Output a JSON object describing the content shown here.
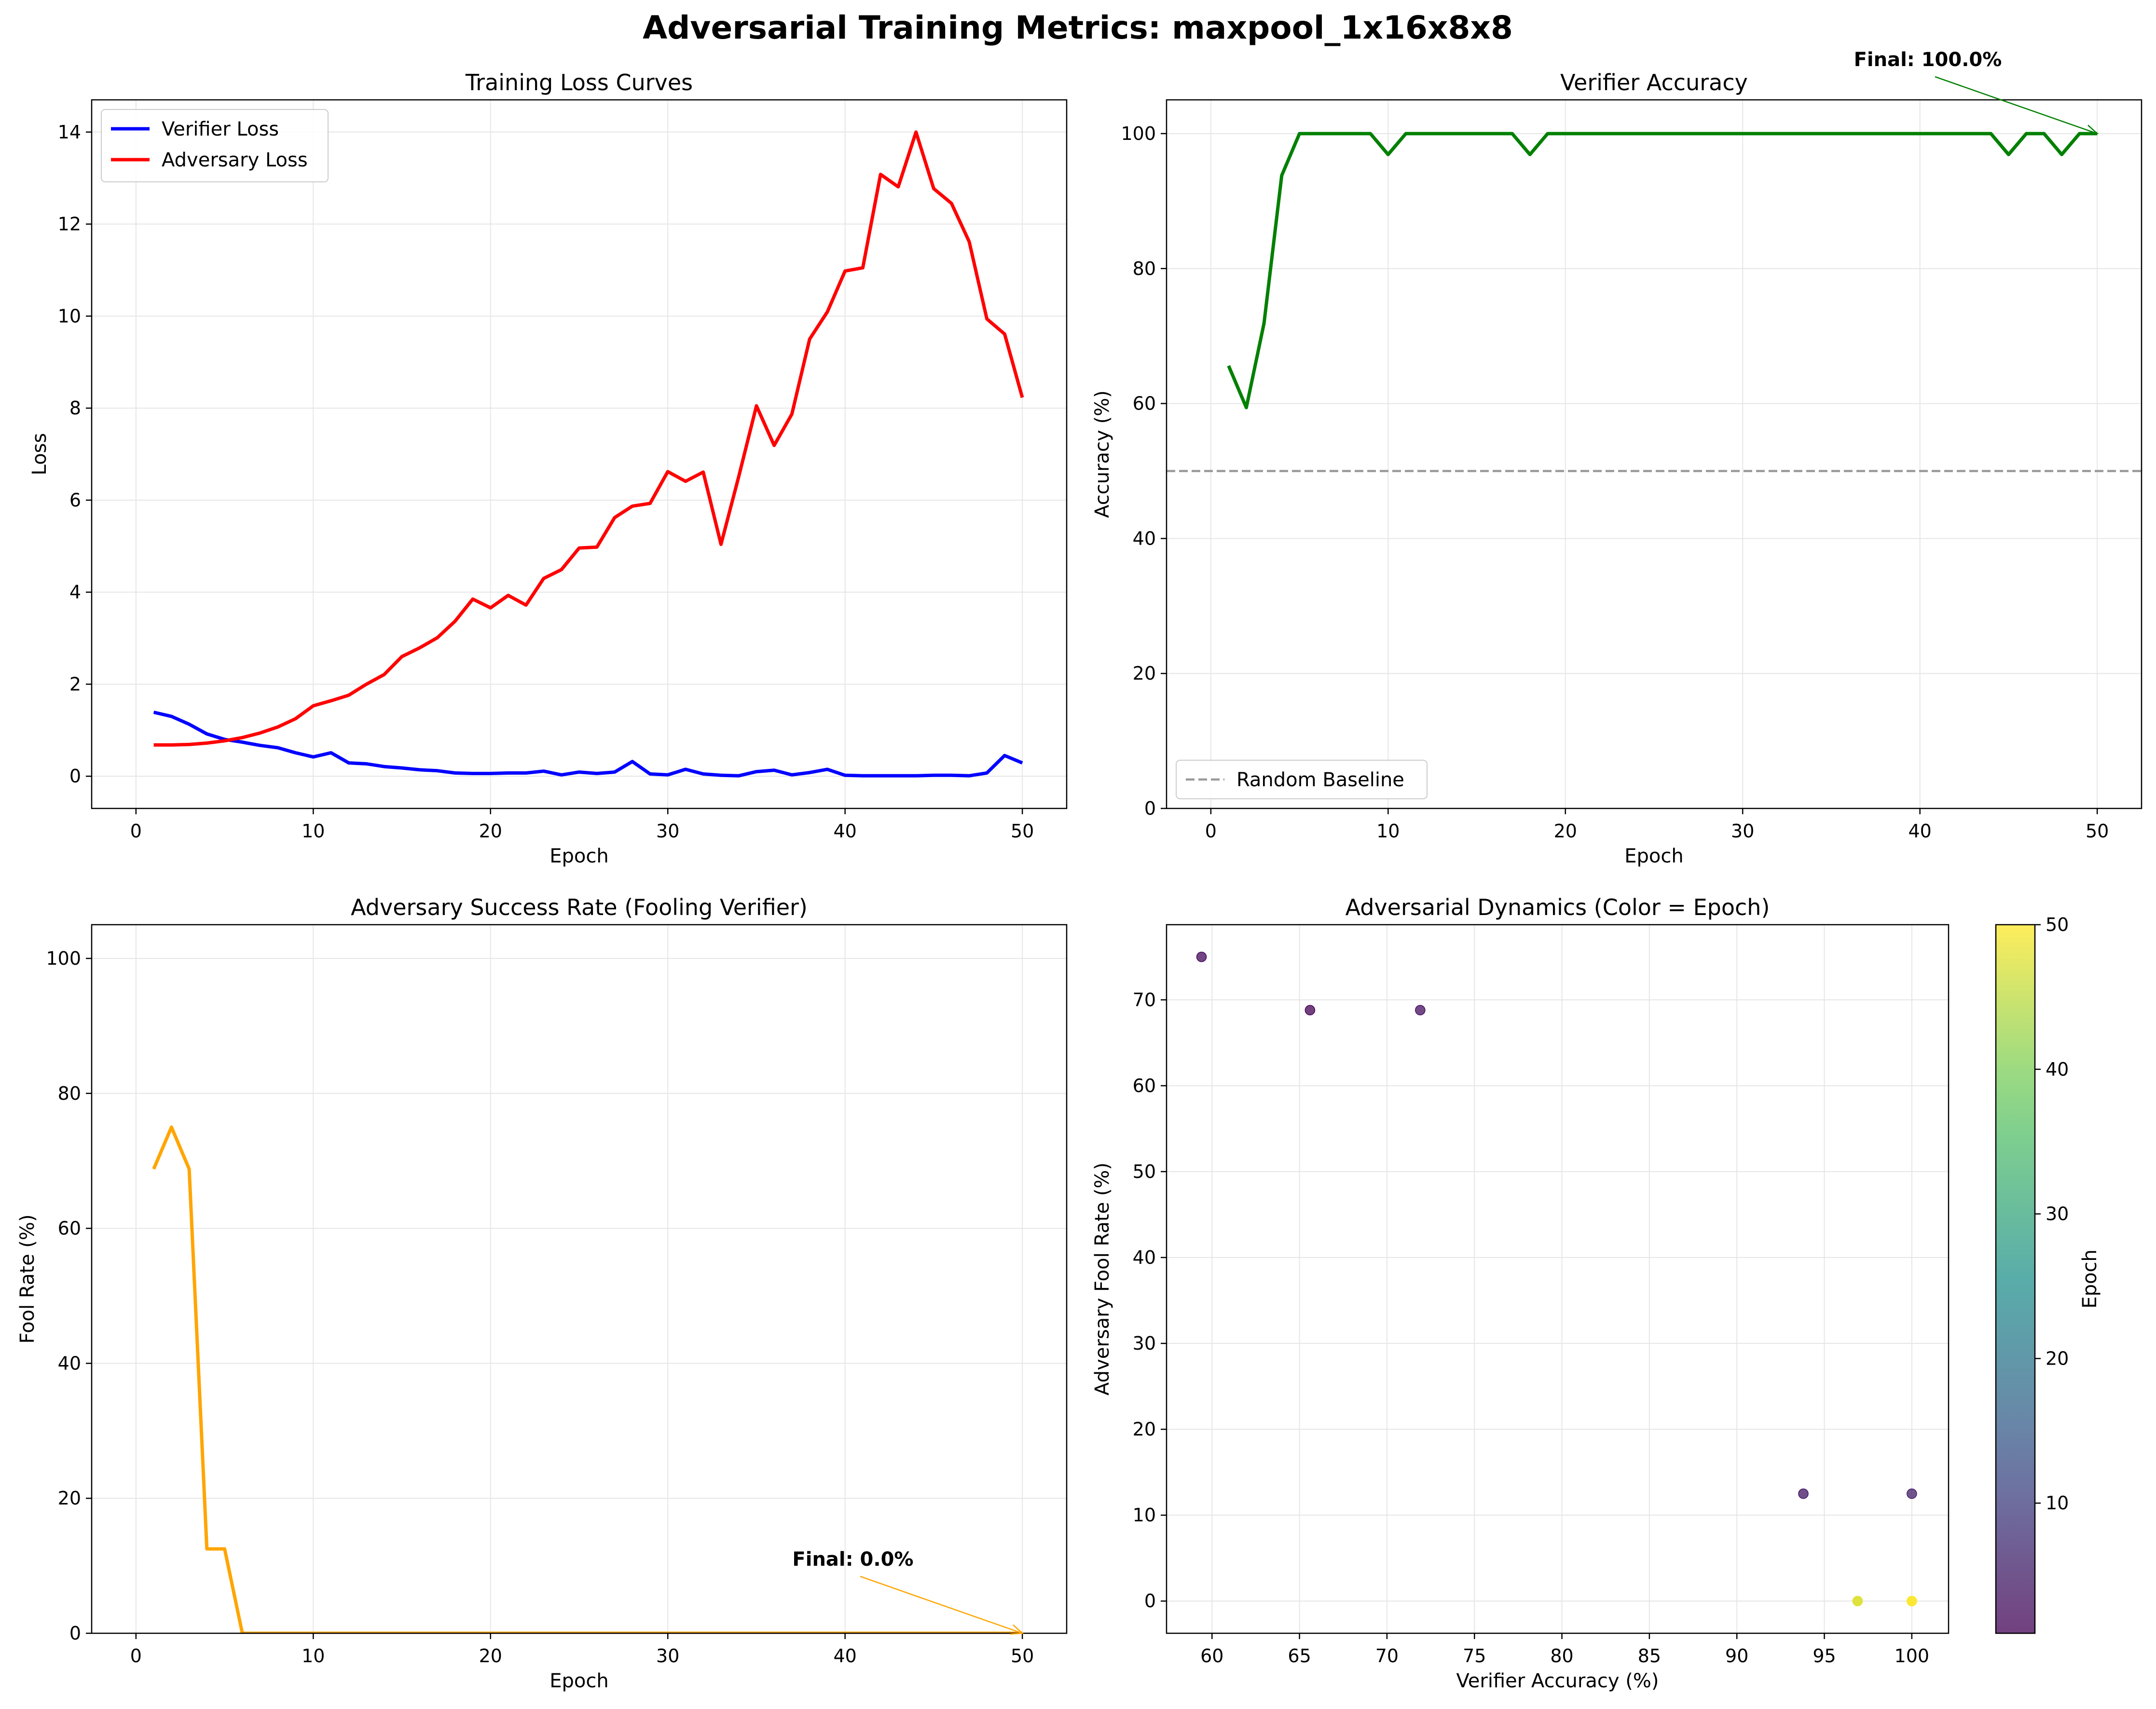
{
  "suptitle": "Adversarial Training Metrics: maxpool_1x16x8x8",
  "colors": {
    "verifier_loss": "#0000ff",
    "adversary_loss": "#ff0000",
    "accuracy": "#008000",
    "fool_rate": "#ffa500",
    "baseline": "#999999",
    "grid": "#e6e6e6"
  },
  "chart_data": [
    {
      "type": "line",
      "title": "Training Loss Curves",
      "xlabel": "Epoch",
      "ylabel": "Loss",
      "xlim": [
        -2.5,
        52.5
      ],
      "ylim": [
        -0.7,
        14.7
      ],
      "xticks": [
        0,
        10,
        20,
        30,
        40,
        50
      ],
      "yticks": [
        0,
        2,
        4,
        6,
        8,
        10,
        12,
        14
      ],
      "grid": true,
      "legend": "upper left",
      "x": [
        1,
        2,
        3,
        4,
        5,
        6,
        7,
        8,
        9,
        10,
        11,
        12,
        13,
        14,
        15,
        16,
        17,
        18,
        19,
        20,
        21,
        22,
        23,
        24,
        25,
        26,
        27,
        28,
        29,
        30,
        31,
        32,
        33,
        34,
        35,
        36,
        37,
        38,
        39,
        40,
        41,
        42,
        43,
        44,
        45,
        46,
        47,
        48,
        49,
        50
      ],
      "series": [
        {
          "name": "Verifier Loss",
          "color": "#0000ff",
          "values": [
            1.39,
            1.3,
            1.13,
            0.92,
            0.8,
            0.74,
            0.67,
            0.62,
            0.51,
            0.42,
            0.51,
            0.29,
            0.27,
            0.21,
            0.18,
            0.14,
            0.12,
            0.07,
            0.06,
            0.06,
            0.07,
            0.07,
            0.11,
            0.03,
            0.09,
            0.06,
            0.09,
            0.32,
            0.05,
            0.03,
            0.15,
            0.05,
            0.02,
            0.01,
            0.1,
            0.13,
            0.03,
            0.08,
            0.15,
            0.02,
            0.01,
            0.01,
            0.01,
            0.01,
            0.02,
            0.02,
            0.01,
            0.07,
            0.45,
            0.29
          ]
        },
        {
          "name": "Adversary Loss",
          "color": "#ff0000",
          "values": [
            0.68,
            0.68,
            0.69,
            0.72,
            0.77,
            0.84,
            0.94,
            1.07,
            1.25,
            1.53,
            1.64,
            1.76,
            2.0,
            2.21,
            2.6,
            2.79,
            3.01,
            3.37,
            3.85,
            3.66,
            3.93,
            3.72,
            4.3,
            4.49,
            4.96,
            4.98,
            5.62,
            5.87,
            5.93,
            6.62,
            6.41,
            6.61,
            5.04,
            6.51,
            8.05,
            7.19,
            7.87,
            9.5,
            10.09,
            10.98,
            11.05,
            13.08,
            12.81,
            14.0,
            12.77,
            12.45,
            11.62,
            9.94,
            9.61,
            8.23
          ]
        }
      ]
    },
    {
      "type": "line",
      "title": "Verifier Accuracy",
      "xlabel": "Epoch",
      "ylabel": "Accuracy (%)",
      "xlim": [
        -2.5,
        52.5
      ],
      "ylim": [
        0,
        105
      ],
      "xticks": [
        0,
        10,
        20,
        30,
        40,
        50
      ],
      "yticks": [
        0,
        20,
        40,
        60,
        80,
        100
      ],
      "grid": true,
      "legend": "lower left",
      "x": [
        1,
        2,
        3,
        4,
        5,
        6,
        7,
        8,
        9,
        10,
        11,
        12,
        13,
        14,
        15,
        16,
        17,
        18,
        19,
        20,
        21,
        22,
        23,
        24,
        25,
        26,
        27,
        28,
        29,
        30,
        31,
        32,
        33,
        34,
        35,
        36,
        37,
        38,
        39,
        40,
        41,
        42,
        43,
        44,
        45,
        46,
        47,
        48,
        49,
        50
      ],
      "series": [
        {
          "name": "",
          "color": "#008000",
          "values": [
            65.6,
            59.4,
            71.9,
            93.8,
            100,
            100,
            100,
            100,
            100,
            96.9,
            100,
            100,
            100,
            100,
            100,
            100,
            100,
            96.9,
            100,
            100,
            100,
            100,
            100,
            100,
            100,
            100,
            100,
            100,
            100,
            100,
            100,
            100,
            100,
            100,
            100,
            100,
            100,
            100,
            100,
            100,
            100,
            100,
            100,
            100,
            96.9,
            100,
            100,
            96.9,
            100,
            100
          ]
        },
        {
          "name": "Random Baseline",
          "color": "#999999",
          "hline": 50
        }
      ],
      "annotation": {
        "text": "Final: 100.0%",
        "x": 50,
        "y": 100,
        "text_x": 35,
        "text_y": 110,
        "color": "#008000"
      }
    },
    {
      "type": "line",
      "title": "Adversary Success Rate (Fooling Verifier)",
      "xlabel": "Epoch",
      "ylabel": "Fool Rate (%)",
      "xlim": [
        -2.5,
        52.5
      ],
      "ylim": [
        0,
        105
      ],
      "xticks": [
        0,
        10,
        20,
        30,
        40,
        50
      ],
      "yticks": [
        0,
        20,
        40,
        60,
        80,
        100
      ],
      "grid": true,
      "x": [
        1,
        2,
        3,
        4,
        5,
        6,
        7,
        8,
        9,
        10,
        11,
        12,
        13,
        14,
        15,
        16,
        17,
        18,
        19,
        20,
        21,
        22,
        23,
        24,
        25,
        26,
        27,
        28,
        29,
        30,
        31,
        32,
        33,
        34,
        35,
        36,
        37,
        38,
        39,
        40,
        41,
        42,
        43,
        44,
        45,
        46,
        47,
        48,
        49,
        50
      ],
      "series": [
        {
          "name": "",
          "color": "#ffa500",
          "values": [
            68.8,
            75.0,
            68.8,
            12.5,
            12.5,
            0,
            0,
            0,
            0,
            0,
            0,
            0,
            0,
            0,
            0,
            0,
            0,
            0,
            0,
            0,
            0,
            0,
            0,
            0,
            0,
            0,
            0,
            0,
            0,
            0,
            0,
            0,
            0,
            0,
            0,
            0,
            0,
            0,
            0,
            0,
            0,
            0,
            0,
            0,
            0,
            0,
            0,
            0,
            0,
            0
          ]
        }
      ],
      "annotation": {
        "text": "Final: 0.0%",
        "x": 50,
        "y": 0,
        "text_x": 35,
        "text_y": 10,
        "color": "#ffa500"
      }
    },
    {
      "type": "scatter",
      "title": "Adversarial Dynamics (Color = Epoch)",
      "xlabel": "Verifier Accuracy (%)",
      "ylabel": "Adversary Fool Rate (%)",
      "xlim": [
        57.4,
        102.1
      ],
      "ylim": [
        -3.75,
        78.75
      ],
      "xticks": [
        60,
        65,
        70,
        75,
        80,
        85,
        90,
        95,
        100
      ],
      "yticks": [
        0,
        10,
        20,
        30,
        40,
        50,
        60,
        70
      ],
      "grid": true,
      "colorbar": {
        "label": "Epoch",
        "min": 1,
        "max": 50,
        "ticks": [
          10,
          20,
          30,
          40,
          50
        ]
      },
      "points": [
        {
          "x": 65.6,
          "y": 68.8,
          "epoch": 1
        },
        {
          "x": 59.4,
          "y": 75.0,
          "epoch": 2
        },
        {
          "x": 71.9,
          "y": 68.8,
          "epoch": 3
        },
        {
          "x": 93.8,
          "y": 12.5,
          "epoch": 4
        },
        {
          "x": 100,
          "y": 12.5,
          "epoch": 5
        },
        {
          "x": 96.9,
          "y": 0,
          "epoch": 45
        },
        {
          "x": 96.9,
          "y": 0,
          "epoch": 48
        },
        {
          "x": 100,
          "y": 0,
          "epoch": 49
        },
        {
          "x": 100,
          "y": 0,
          "epoch": 50
        }
      ]
    }
  ]
}
